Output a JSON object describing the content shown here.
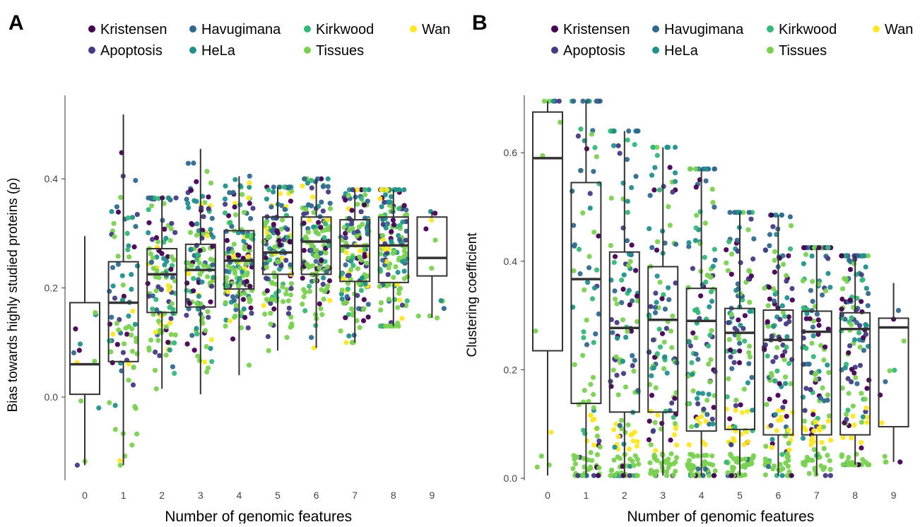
{
  "colors": {
    "Kristensen": "#440154",
    "Apoptosis": "#443a83",
    "Havugimana": "#31688e",
    "HeLa": "#21908d",
    "Kirkwood": "#35b779",
    "Tissues": "#7ad151",
    "Wan": "#fde725",
    "box": "#333333",
    "axis": "#333333",
    "text": "#000000"
  },
  "legend": [
    [
      "Kristensen",
      "Havugimana",
      "Kirkwood",
      "Wan"
    ],
    [
      "Apoptosis",
      "HeLa",
      "Tissues"
    ]
  ],
  "chart_data": [
    {
      "panel": "A",
      "type": "scatter",
      "subtype": "boxplot with jittered points",
      "title": "",
      "xlabel": "Number of genomic features",
      "ylabel": "Bias towards highly studied proteins (ρ)",
      "x_categories": [
        "0",
        "1",
        "2",
        "3",
        "4",
        "5",
        "6",
        "7",
        "8",
        "9"
      ],
      "ylim": [
        -0.16,
        0.56
      ],
      "yticks": [
        0.0,
        0.2,
        0.4
      ],
      "ytick_labels": [
        "0.0",
        "0.2",
        "0.4"
      ],
      "grid": false,
      "legend_position": "top",
      "series": [
        "Kristensen",
        "Apoptosis",
        "Havugimana",
        "HeLa",
        "Kirkwood",
        "Tissues",
        "Wan"
      ],
      "boxes": [
        {
          "x": "0",
          "q1": 0.005,
          "median": 0.06,
          "q3": 0.173,
          "whisker_low": -0.125,
          "whisker_high": 0.295
        },
        {
          "x": "1",
          "q1": 0.065,
          "median": 0.173,
          "q3": 0.248,
          "whisker_low": -0.125,
          "whisker_high": 0.518
        },
        {
          "x": "2",
          "q1": 0.155,
          "median": 0.225,
          "q3": 0.272,
          "whisker_low": 0.015,
          "whisker_high": 0.365
        },
        {
          "x": "3",
          "q1": 0.165,
          "median": 0.233,
          "q3": 0.28,
          "whisker_low": 0.005,
          "whisker_high": 0.455
        },
        {
          "x": "4",
          "q1": 0.198,
          "median": 0.25,
          "q3": 0.305,
          "whisker_low": 0.04,
          "whisker_high": 0.405
        },
        {
          "x": "5",
          "q1": 0.225,
          "median": 0.265,
          "q3": 0.33,
          "whisker_low": 0.085,
          "whisker_high": 0.385
        },
        {
          "x": "6",
          "q1": 0.225,
          "median": 0.285,
          "q3": 0.33,
          "whisker_low": 0.09,
          "whisker_high": 0.4
        },
        {
          "x": "7",
          "q1": 0.212,
          "median": 0.277,
          "q3": 0.325,
          "whisker_low": 0.1,
          "whisker_high": 0.38
        },
        {
          "x": "8",
          "q1": 0.21,
          "median": 0.278,
          "q3": 0.33,
          "whisker_low": 0.13,
          "whisker_high": 0.38
        },
        {
          "x": "9",
          "q1": 0.222,
          "median": 0.255,
          "q3": 0.33,
          "whisker_low": 0.145,
          "whisker_high": 0.34
        }
      ],
      "point_counts": [
        12,
        80,
        120,
        130,
        150,
        150,
        150,
        150,
        150,
        12
      ]
    },
    {
      "panel": "B",
      "type": "scatter",
      "subtype": "boxplot with jittered points",
      "title": "",
      "xlabel": "Number of genomic features",
      "ylabel": "Clustering coefficient",
      "x_categories": [
        "0",
        "1",
        "2",
        "3",
        "4",
        "5",
        "6",
        "7",
        "8",
        "9"
      ],
      "ylim": [
        -0.01,
        0.7
      ],
      "yticks": [
        0.0,
        0.2,
        0.4,
        0.6
      ],
      "ytick_labels": [
        "0.0",
        "0.2",
        "0.4",
        "0.6"
      ],
      "grid": false,
      "legend_position": "top",
      "series": [
        "Kristensen",
        "Apoptosis",
        "Havugimana",
        "HeLa",
        "Kirkwood",
        "Tissues",
        "Wan"
      ],
      "boxes": [
        {
          "x": "0",
          "q1": 0.235,
          "median": 0.59,
          "q3": 0.675,
          "whisker_low": 0.005,
          "whisker_high": 0.695
        },
        {
          "x": "1",
          "q1": 0.138,
          "median": 0.367,
          "q3": 0.545,
          "whisker_low": 0.005,
          "whisker_high": 0.695
        },
        {
          "x": "2",
          "q1": 0.122,
          "median": 0.277,
          "q3": 0.417,
          "whisker_low": 0.005,
          "whisker_high": 0.64
        },
        {
          "x": "3",
          "q1": 0.122,
          "median": 0.292,
          "q3": 0.39,
          "whisker_low": 0.005,
          "whisker_high": 0.61
        },
        {
          "x": "4",
          "q1": 0.087,
          "median": 0.29,
          "q3": 0.35,
          "whisker_low": 0.005,
          "whisker_high": 0.57
        },
        {
          "x": "5",
          "q1": 0.09,
          "median": 0.268,
          "q3": 0.313,
          "whisker_low": 0.005,
          "whisker_high": 0.49
        },
        {
          "x": "6",
          "q1": 0.08,
          "median": 0.255,
          "q3": 0.31,
          "whisker_low": 0.005,
          "whisker_high": 0.485
        },
        {
          "x": "7",
          "q1": 0.08,
          "median": 0.27,
          "q3": 0.308,
          "whisker_low": 0.005,
          "whisker_high": 0.425
        },
        {
          "x": "8",
          "q1": 0.08,
          "median": 0.275,
          "q3": 0.305,
          "whisker_low": 0.025,
          "whisker_high": 0.41
        },
        {
          "x": "9",
          "q1": 0.095,
          "median": 0.278,
          "q3": 0.295,
          "whisker_low": 0.03,
          "whisker_high": 0.36
        }
      ],
      "point_counts": [
        12,
        110,
        140,
        140,
        150,
        150,
        150,
        150,
        150,
        12
      ]
    }
  ]
}
